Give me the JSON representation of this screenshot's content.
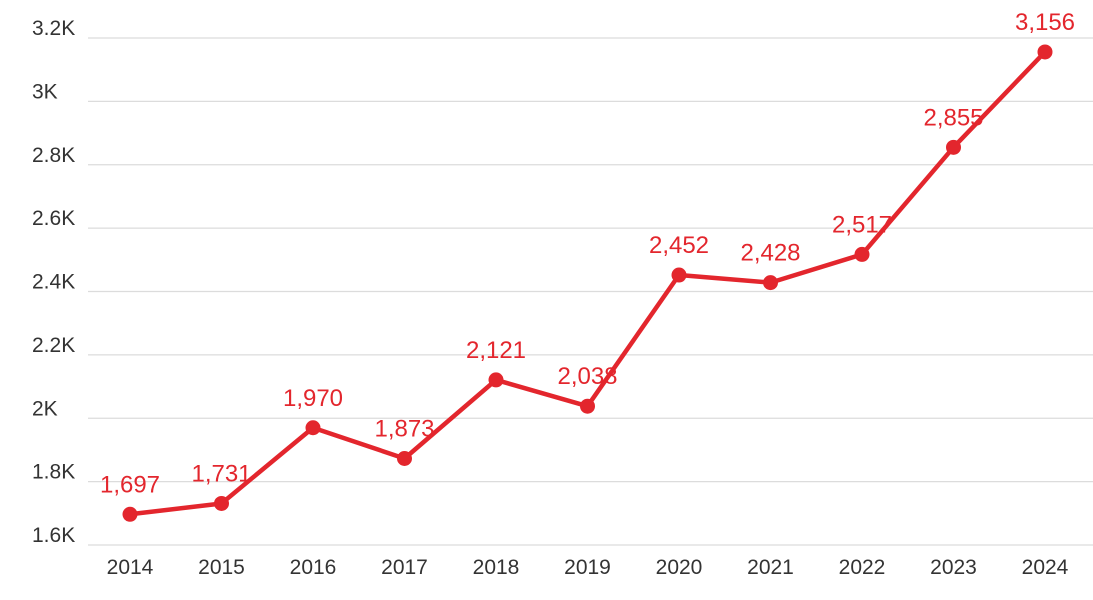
{
  "chart_data": {
    "type": "line",
    "title": "",
    "xlabel": "",
    "ylabel": "",
    "categories": [
      "2014",
      "2015",
      "2016",
      "2017",
      "2018",
      "2019",
      "2020",
      "2021",
      "2022",
      "2023",
      "2024"
    ],
    "series": [
      {
        "values": [
          1697,
          1731,
          1970,
          1873,
          2121,
          2038,
          2452,
          2428,
          2517,
          2855,
          3156
        ]
      }
    ],
    "data_labels": [
      "1,697",
      "1,731",
      "1,970",
      "1,873",
      "2,121",
      "2,038",
      "2,452",
      "2,428",
      "2,517",
      "2,855",
      "3,156"
    ],
    "ylim": [
      1600,
      3200
    ],
    "yticks": [
      {
        "value": 1600,
        "label": "1.6K"
      },
      {
        "value": 1800,
        "label": "1.8K"
      },
      {
        "value": 2000,
        "label": "2K"
      },
      {
        "value": 2200,
        "label": "2.2K"
      },
      {
        "value": 2400,
        "label": "2.4K"
      },
      {
        "value": 2600,
        "label": "2.6K"
      },
      {
        "value": 2800,
        "label": "2.8K"
      },
      {
        "value": 3000,
        "label": "3K"
      },
      {
        "value": 3200,
        "label": "3.2K"
      }
    ],
    "grid": true,
    "legend": "none",
    "colors": {
      "line": "#e3262d",
      "grid": "#dcdcdc",
      "tick_text": "#333333"
    }
  }
}
